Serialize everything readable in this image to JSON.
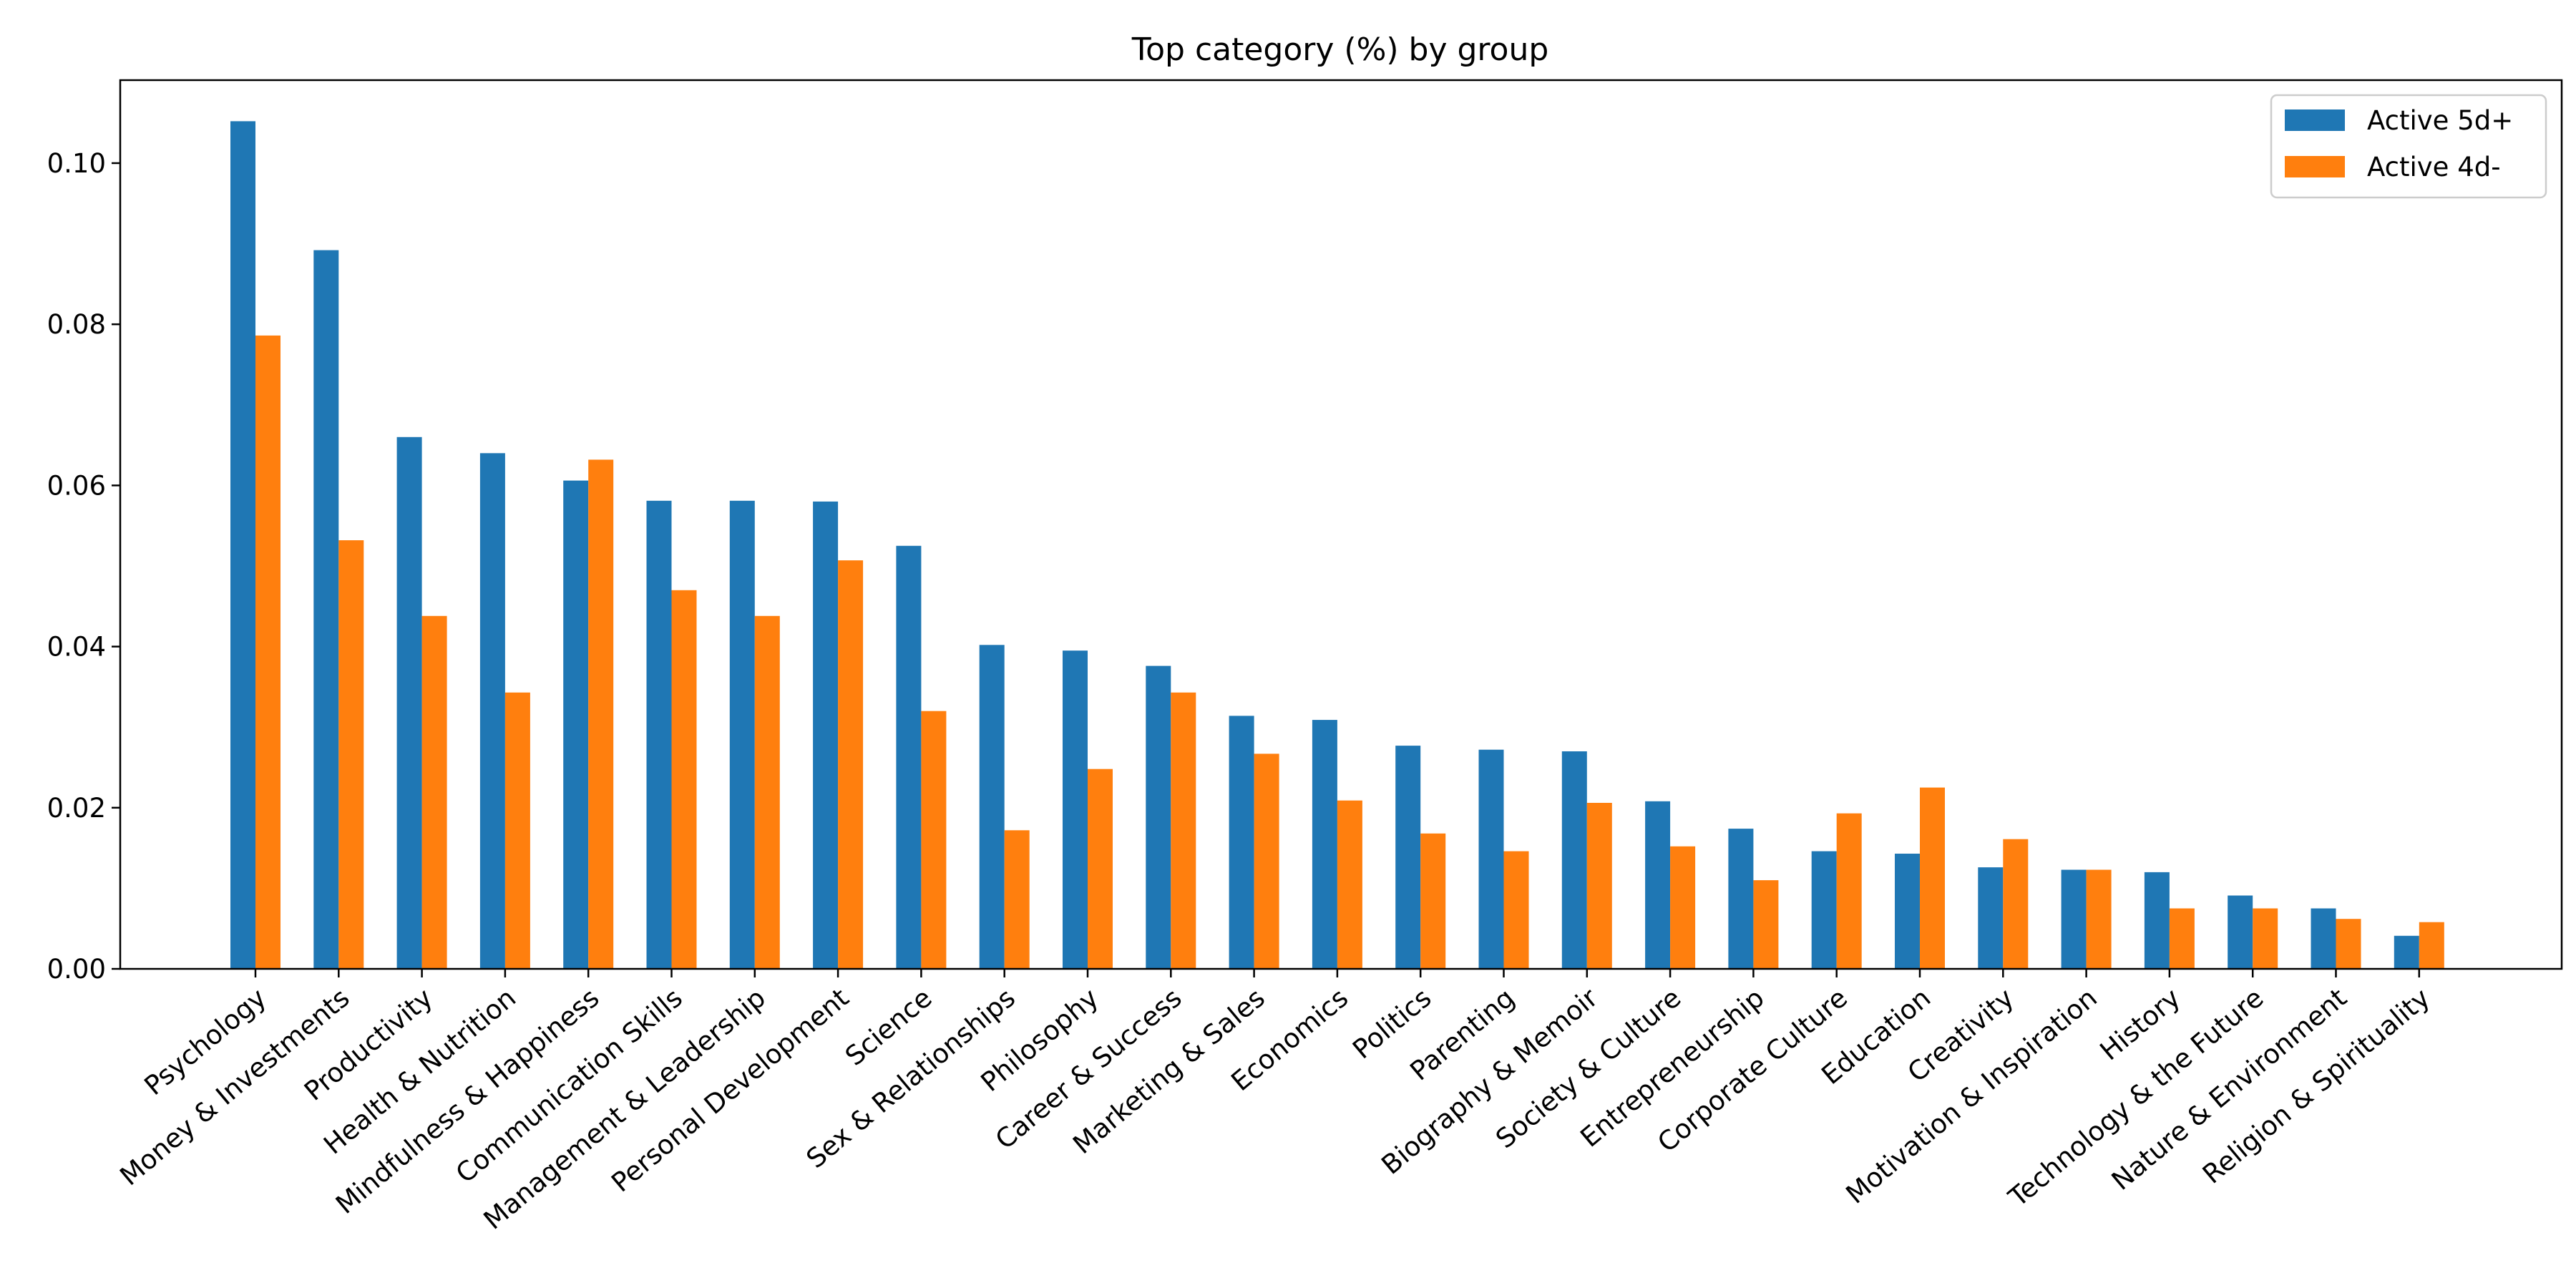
{
  "chart_data": {
    "type": "bar",
    "title": "Top category (%) by group",
    "xlabel": "",
    "ylabel": "",
    "ylim": [
      0,
      0.1103
    ],
    "yticks": [
      0.0,
      0.02,
      0.04,
      0.06,
      0.08,
      0.1
    ],
    "ytick_labels": [
      "0.00",
      "0.02",
      "0.04",
      "0.06",
      "0.08",
      "0.10"
    ],
    "grid": false,
    "legend_position": "top-right",
    "categories": [
      "Psychology",
      "Money & Investments",
      "Productivity",
      "Health & Nutrition",
      "Mindfulness & Happiness",
      "Communication Skills",
      "Management & Leadership",
      "Personal Development",
      "Science",
      "Sex & Relationships",
      "Philosophy",
      "Career & Success",
      "Marketing & Sales",
      "Economics",
      "Politics",
      "Parenting",
      "Biography & Memoir",
      "Society & Culture",
      "Entrepreneurship",
      "Corporate Culture",
      "Education",
      "Creativity",
      "Motivation & Inspiration",
      "History",
      "Technology & the Future",
      "Nature & Environment",
      "Religion & Spirituality"
    ],
    "series": [
      {
        "name": "Active 5d+",
        "color": "#1f77b4",
        "values": [
          0.1052,
          0.0892,
          0.066,
          0.064,
          0.0606,
          0.0581,
          0.0581,
          0.058,
          0.0525,
          0.0402,
          0.0395,
          0.0376,
          0.0314,
          0.0309,
          0.0277,
          0.0272,
          0.027,
          0.0208,
          0.0174,
          0.0146,
          0.0143,
          0.0126,
          0.0123,
          0.012,
          0.0091,
          0.0075,
          0.0041
        ]
      },
      {
        "name": "Active 4d-",
        "color": "#ff7f0e",
        "values": [
          0.0786,
          0.0532,
          0.0438,
          0.0343,
          0.0632,
          0.047,
          0.0438,
          0.0507,
          0.032,
          0.0172,
          0.0248,
          0.0343,
          0.0267,
          0.0209,
          0.0168,
          0.0146,
          0.0206,
          0.0152,
          0.011,
          0.0193,
          0.0225,
          0.0161,
          0.0123,
          0.0075,
          0.0075,
          0.0062,
          0.0058
        ]
      }
    ]
  }
}
